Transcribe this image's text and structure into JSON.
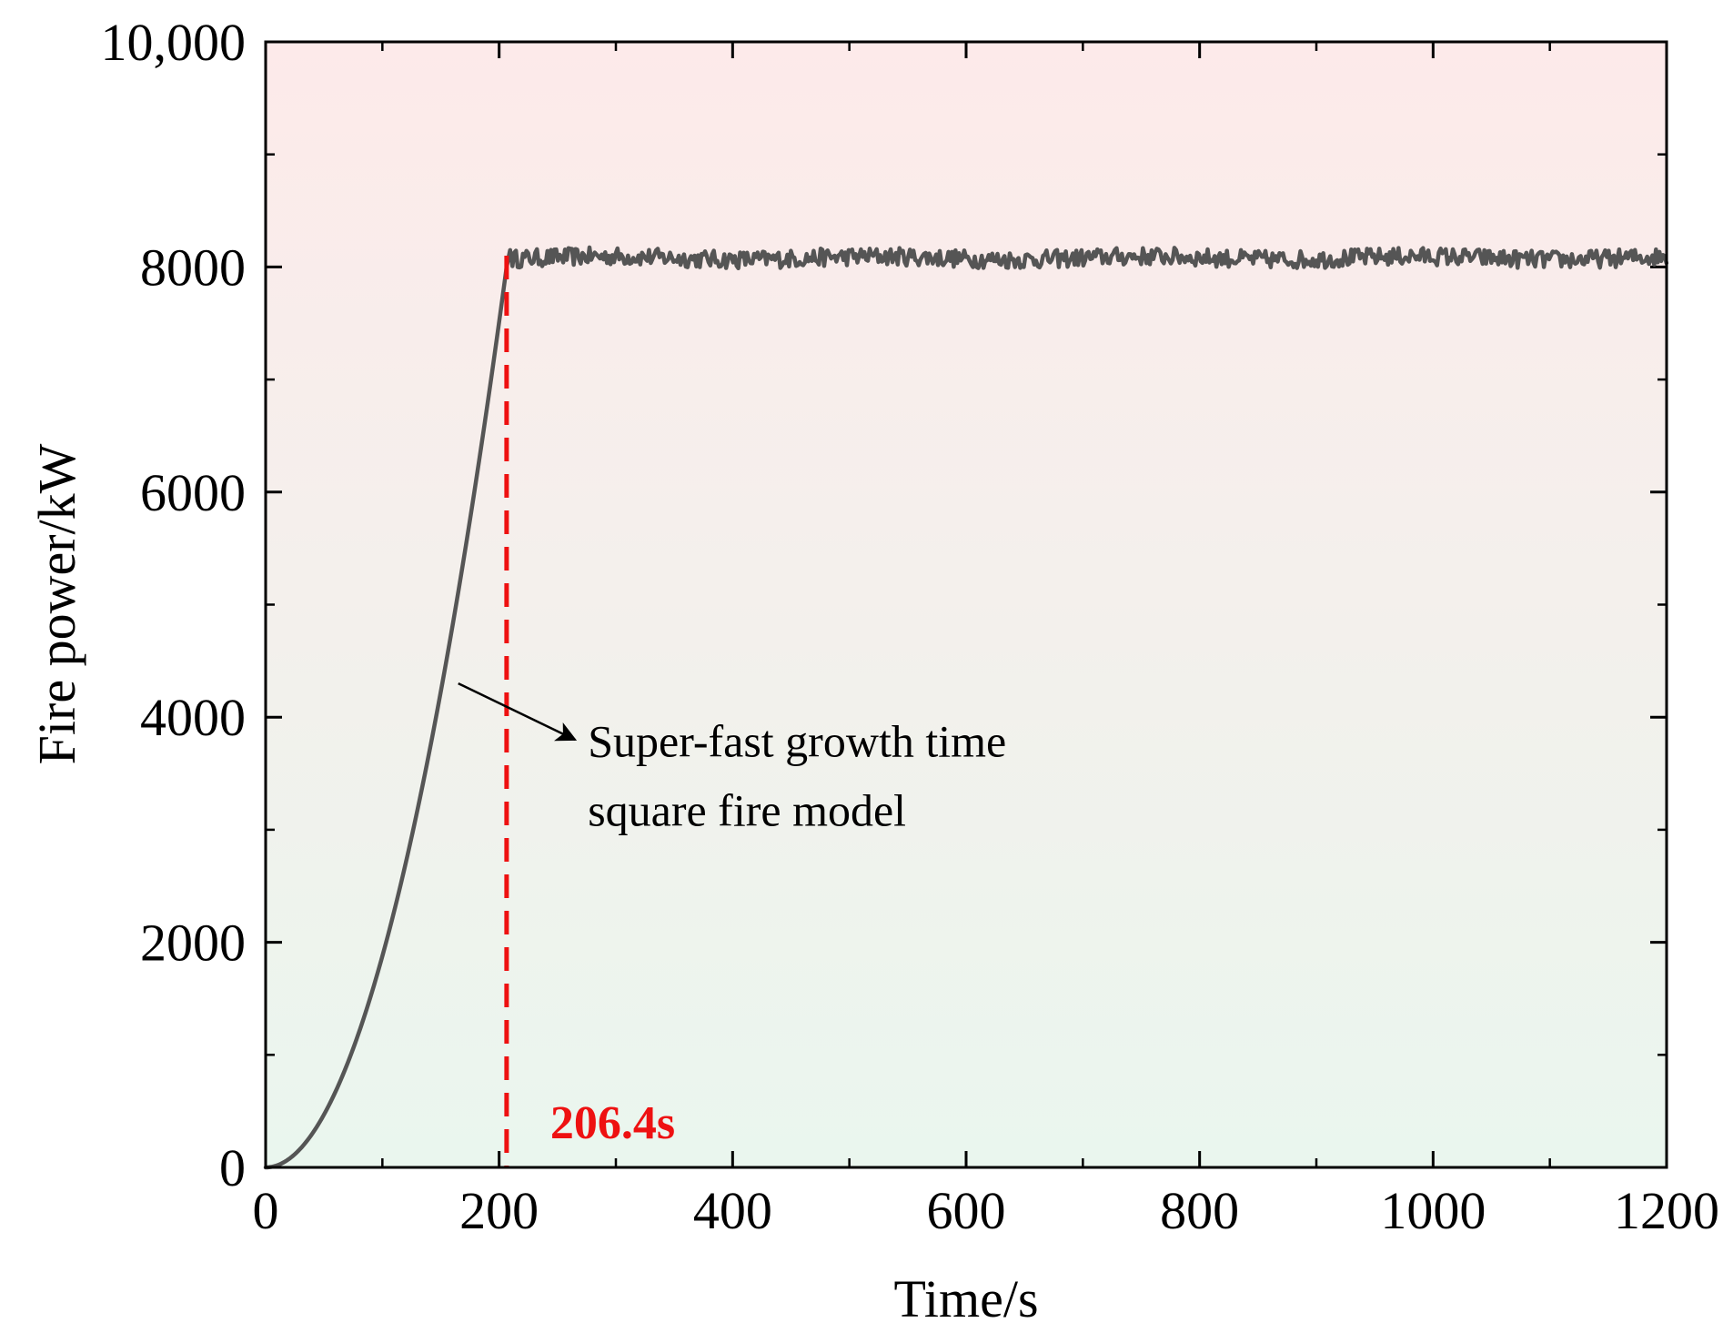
{
  "chart_data": {
    "type": "line",
    "title": "",
    "xlabel": "Time/s",
    "ylabel": "Fire power/kW",
    "xlim": [
      0,
      1200
    ],
    "ylim": [
      0,
      10000
    ],
    "x_ticks": [
      0,
      200,
      400,
      600,
      800,
      1000,
      1200
    ],
    "x_tick_labels": [
      "0",
      "200",
      "400",
      "600",
      "800",
      "1000",
      "1200"
    ],
    "y_ticks": [
      0,
      2000,
      4000,
      6000,
      8000,
      10000
    ],
    "y_tick_labels": [
      "0",
      "2000",
      "4000",
      "6000",
      "8000",
      "10,000"
    ],
    "x_minor_step": 100,
    "y_minor_step": 1000,
    "grid": false,
    "background_gradient": {
      "top": "#fdeaea",
      "bottom": "#eaf6ee"
    },
    "series": [
      {
        "name": "Super-fast growth time square fire model",
        "color": "#555555",
        "model": "t-squared growth then steady plateau",
        "growth_end_time": 206.4,
        "plateau_mean": 8080,
        "plateau_noise_amplitude": 80,
        "plateau_end_time": 1200,
        "points": [
          [
            0,
            0
          ],
          [
            20,
            75
          ],
          [
            40,
            300
          ],
          [
            60,
            680
          ],
          [
            80,
            1200
          ],
          [
            100,
            1880
          ],
          [
            120,
            2710
          ],
          [
            140,
            3680
          ],
          [
            160,
            4810
          ],
          [
            180,
            6090
          ],
          [
            200,
            7510
          ],
          [
            206.4,
            8000
          ],
          [
            210,
            8150
          ],
          [
            220,
            8060
          ],
          [
            240,
            8090
          ],
          [
            260,
            8070
          ],
          [
            280,
            8110
          ],
          [
            300,
            8060
          ],
          [
            350,
            8100
          ],
          [
            400,
            8080
          ],
          [
            450,
            8120
          ],
          [
            500,
            8070
          ],
          [
            550,
            8110
          ],
          [
            600,
            8090
          ],
          [
            650,
            8070
          ],
          [
            700,
            8100
          ],
          [
            750,
            8080
          ],
          [
            800,
            8110
          ],
          [
            850,
            8090
          ],
          [
            900,
            8100
          ],
          [
            950,
            8120
          ],
          [
            1000,
            8090
          ],
          [
            1050,
            8080
          ],
          [
            1100,
            8110
          ],
          [
            1150,
            8090
          ],
          [
            1200,
            8050
          ]
        ]
      }
    ],
    "marker": {
      "x": 206.4,
      "label": "206.4s",
      "color": "#ee1111",
      "style": "dashed"
    },
    "annotation": {
      "lines": [
        "Super-fast growth time",
        "square fire model"
      ],
      "arrow_from": [
        165,
        4300
      ],
      "arrow_to": [
        265,
        3800
      ],
      "text_anchor": [
        276,
        3780
      ]
    }
  }
}
